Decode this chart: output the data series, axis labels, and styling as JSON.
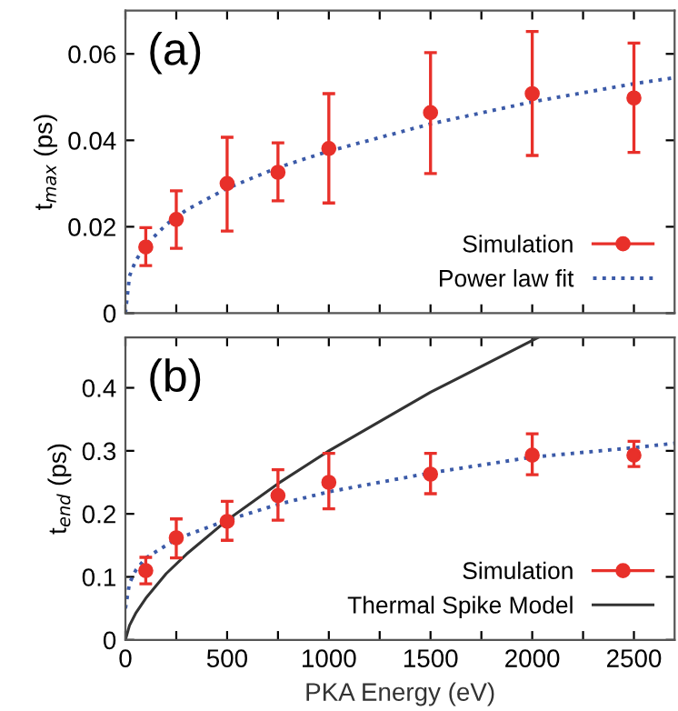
{
  "chart_data": [
    {
      "type": "scatter",
      "ylabel": "t$_{max}$ (ps)",
      "annotations": [
        "(a)"
      ],
      "xlim": [
        0,
        2700
      ],
      "ylim": [
        0,
        0.07
      ],
      "xticks": [
        0,
        {
          "value": 250,
          "label": null
        },
        500,
        {
          "value": 750,
          "label": null
        },
        1000,
        {
          "value": 1250,
          "label": null
        },
        1500,
        {
          "value": 1750,
          "label": null
        },
        2000,
        {
          "value": 2250,
          "label": null
        },
        2500
      ],
      "yticks": [
        0,
        0.02,
        0.04,
        0.06
      ],
      "tick_labels": "y",
      "legend": "bottom right",
      "grid": false,
      "series": [
        {
          "name": "Simulation",
          "color": "#e8302a",
          "marker": "circle",
          "x": [
            100,
            250,
            500,
            750,
            1000,
            1500,
            2000,
            2500
          ],
          "values": [
            0.0153,
            0.0217,
            0.03,
            0.0326,
            0.0381,
            0.0464,
            0.0508,
            0.0498
          ],
          "errors": [
            [
              0.011,
              0.0198
            ],
            [
              0.015,
              0.0283
            ],
            [
              0.019,
              0.0407
            ],
            [
              0.026,
              0.0394
            ],
            [
              0.0255,
              0.0508
            ],
            [
              0.0323,
              0.0603
            ],
            [
              0.0365,
              0.0652
            ],
            [
              0.0372,
              0.0625
            ]
          ]
        },
        {
          "name": "Power law fit",
          "type": "line",
          "color": "#3b5aa8",
          "line_style": "dotted",
          "x": [
            0,
            20,
            50,
            100,
            200,
            300,
            500,
            750,
            1000,
            1500,
            2000,
            2500,
            2700
          ],
          "values": [
            0,
            0.0086,
            0.0121,
            0.0158,
            0.0205,
            0.0239,
            0.0289,
            0.0337,
            0.0375,
            0.0438,
            0.0489,
            0.0531,
            0.0545
          ]
        }
      ]
    },
    {
      "type": "scatter",
      "xlabel": "PKA Energy (eV)",
      "ylabel": "t$_{end}$ (ps)",
      "annotations": [
        "(b)"
      ],
      "xlim": [
        0,
        2700
      ],
      "ylim": [
        0,
        0.48
      ],
      "xticks": [
        0,
        {
          "value": 250,
          "label": null
        },
        500,
        {
          "value": 750,
          "label": null
        },
        1000,
        {
          "value": 1250,
          "label": null
        },
        1500,
        {
          "value": 1750,
          "label": null
        },
        2000,
        {
          "value": 2250,
          "label": null
        },
        2500
      ],
      "yticks": [
        0,
        0.1,
        0.2,
        0.3,
        0.4
      ],
      "legend": "bottom right",
      "grid": false,
      "series": [
        {
          "name": "Simulation",
          "color": "#e8302a",
          "marker": "circle",
          "x": [
            100,
            250,
            500,
            750,
            1000,
            1500,
            2000,
            2500
          ],
          "values": [
            0.11,
            0.162,
            0.188,
            0.229,
            0.25,
            0.263,
            0.293,
            0.293
          ],
          "errors": [
            [
              0.089,
              0.131
            ],
            [
              0.13,
              0.192
            ],
            [
              0.158,
              0.22
            ],
            [
              0.19,
              0.27
            ],
            [
              0.208,
              0.296
            ],
            [
              0.232,
              0.296
            ],
            [
              0.262,
              0.327
            ],
            [
              0.275,
              0.315
            ]
          ]
        },
        {
          "type": "line",
          "color": "#3b5aa8",
          "line_style": "dotted",
          "x": [
            0,
            20,
            50,
            100,
            250,
            500,
            750,
            1000,
            1500,
            2000,
            2500,
            2700
          ],
          "values": [
            0.05,
            0.09,
            0.11,
            0.13,
            0.16,
            0.19,
            0.215,
            0.235,
            0.265,
            0.29,
            0.305,
            0.312
          ]
        },
        {
          "name": "Thermal Spike Model",
          "type": "line",
          "color": "#333333",
          "line_style": "solid",
          "x": [
            0,
            20,
            50,
            100,
            200,
            300,
            500,
            750,
            1000,
            1500,
            2030
          ],
          "values": [
            0,
            0.023,
            0.042,
            0.066,
            0.105,
            0.136,
            0.19,
            0.248,
            0.3,
            0.393,
            0.48
          ]
        }
      ]
    }
  ]
}
